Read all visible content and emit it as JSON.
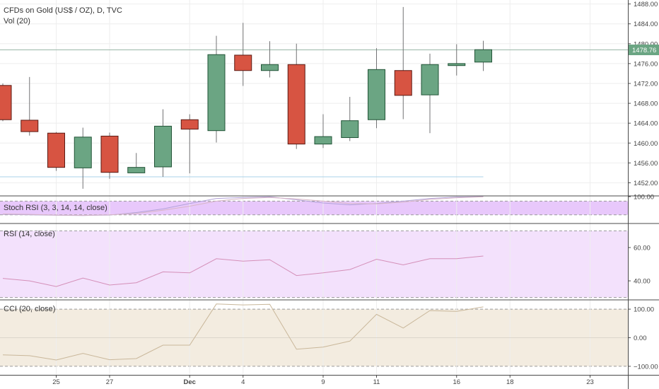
{
  "symbol_title": "CFDs on Gold (US$ / OZ), D, TVC",
  "volume_label": "Vol (20)",
  "stoch_label": "Stoch RSI (3, 3, 14, 14, close)",
  "rsi_label": "RSI (14, close)",
  "cci_label": "CCI (20, close)",
  "last_price_label": "1478.76",
  "colors": {
    "up_fill": "#6ba583",
    "up_stroke": "#225437",
    "down_fill": "#d75442",
    "down_stroke": "#5b1a13",
    "wick": "#737375",
    "last_price_box": "#6ba583",
    "stoch_bg": "#e8c8fb",
    "rsi_bg": "#f3e1fc",
    "cci_bg": "#f3ece0",
    "rsi_line": "#d48fb8",
    "cci_line": "#c9b79a",
    "stoch_k": "#b3a3d9",
    "stoch_d": "#d7b6c6"
  },
  "chart_data": [
    {
      "type": "candlestick",
      "title": "CFDs on Gold (US$ / OZ), D, TVC",
      "x_ticks": [
        {
          "label": "25",
          "t": 2
        },
        {
          "label": "27",
          "t": 4
        },
        {
          "label": "Dec",
          "t": 7
        },
        {
          "label": "4",
          "t": 9
        },
        {
          "label": "9",
          "t": 12
        },
        {
          "label": "11",
          "t": 14
        },
        {
          "label": "16",
          "t": 17
        },
        {
          "label": "18",
          "t": 19
        },
        {
          "label": "23",
          "t": 22
        }
      ],
      "y_ticks": [
        1452,
        1456,
        1460,
        1464,
        1468,
        1472,
        1476,
        1480,
        1484,
        1488
      ],
      "ylim": [
        1449.5,
        1488.8
      ],
      "last_price": 1478.76,
      "support_line": 1453.2,
      "candles": [
        {
          "t": 0,
          "o": 1471.6,
          "h": 1472.0,
          "l": 1464.4,
          "c": 1464.7
        },
        {
          "t": 1,
          "o": 1464.6,
          "h": 1473.3,
          "l": 1461.5,
          "c": 1462.3
        },
        {
          "t": 2,
          "o": 1462.0,
          "h": 1462.2,
          "l": 1454.4,
          "c": 1455.1
        },
        {
          "t": 3,
          "o": 1455.0,
          "h": 1463.1,
          "l": 1450.8,
          "c": 1461.2
        },
        {
          "t": 4,
          "o": 1461.4,
          "h": 1462.1,
          "l": 1452.8,
          "c": 1454.1
        },
        {
          "t": 5,
          "o": 1454.0,
          "h": 1458.0,
          "l": 1454.0,
          "c": 1455.1
        },
        {
          "t": 6,
          "o": 1455.2,
          "h": 1466.8,
          "l": 1453.2,
          "c": 1463.4
        },
        {
          "t": 7,
          "o": 1464.7,
          "h": 1465.8,
          "l": 1453.9,
          "c": 1462.8
        },
        {
          "t": 8,
          "o": 1462.5,
          "h": 1481.6,
          "l": 1460.1,
          "c": 1477.8
        },
        {
          "t": 9,
          "o": 1477.7,
          "h": 1484.2,
          "l": 1471.5,
          "c": 1474.6
        },
        {
          "t": 10,
          "o": 1474.6,
          "h": 1480.5,
          "l": 1473.2,
          "c": 1475.8
        },
        {
          "t": 11,
          "o": 1475.8,
          "h": 1480.0,
          "l": 1458.8,
          "c": 1459.8
        },
        {
          "t": 12,
          "o": 1459.8,
          "h": 1465.8,
          "l": 1459.0,
          "c": 1461.3
        },
        {
          "t": 13,
          "o": 1461.1,
          "h": 1469.3,
          "l": 1460.4,
          "c": 1464.5
        },
        {
          "t": 14,
          "o": 1464.7,
          "h": 1479.1,
          "l": 1463.0,
          "c": 1474.8
        },
        {
          "t": 15,
          "o": 1474.6,
          "h": 1487.4,
          "l": 1464.8,
          "c": 1469.6
        },
        {
          "t": 16,
          "o": 1469.7,
          "h": 1478.0,
          "l": 1462.0,
          "c": 1475.8
        },
        {
          "t": 17,
          "o": 1475.6,
          "h": 1479.9,
          "l": 1473.6,
          "c": 1476.0
        },
        {
          "t": 18,
          "o": 1476.3,
          "h": 1480.6,
          "l": 1474.5,
          "c": 1478.8
        }
      ]
    },
    {
      "type": "line",
      "title": "Stoch RSI (3, 3, 14, 14, close)",
      "y_ticks": [
        100
      ],
      "ylim": [
        -15,
        100
      ],
      "bands": [
        80,
        20
      ],
      "series": [
        {
          "key": "k",
          "values": [
            22,
            20,
            18,
            17,
            19,
            30,
            46,
            70,
            92,
            96,
            99,
            86,
            72,
            64,
            70,
            80,
            92,
            98,
            100
          ]
        },
        {
          "key": "d",
          "values": [
            24,
            22,
            19,
            18,
            20,
            26,
            40,
            58,
            80,
            92,
            96,
            90,
            80,
            70,
            68,
            76,
            88,
            95,
            99
          ]
        }
      ]
    },
    {
      "type": "line",
      "title": "RSI (14, close)",
      "y_ticks": [
        40,
        60
      ],
      "ylim": [
        29,
        74
      ],
      "bands": [
        70,
        30
      ],
      "series": [
        {
          "key": "rsi",
          "values": [
            41.5,
            40.0,
            36.6,
            41.7,
            37.5,
            38.9,
            45.4,
            44.8,
            53.3,
            51.8,
            52.7,
            43.2,
            44.8,
            46.8,
            53.0,
            49.6,
            53.3,
            53.3,
            54.9
          ]
        }
      ]
    },
    {
      "type": "line",
      "title": "CCI (20, close)",
      "y_ticks": [
        -100,
        0,
        100
      ],
      "ylim": [
        -130,
        130
      ],
      "bands": [
        100,
        -100
      ],
      "series": [
        {
          "key": "cci",
          "values": [
            -60,
            -63,
            -78,
            -55,
            -77,
            -73,
            -26,
            -26,
            118,
            115,
            117,
            -40,
            -33,
            -12,
            82,
            34,
            95,
            92,
            108
          ]
        }
      ]
    }
  ]
}
